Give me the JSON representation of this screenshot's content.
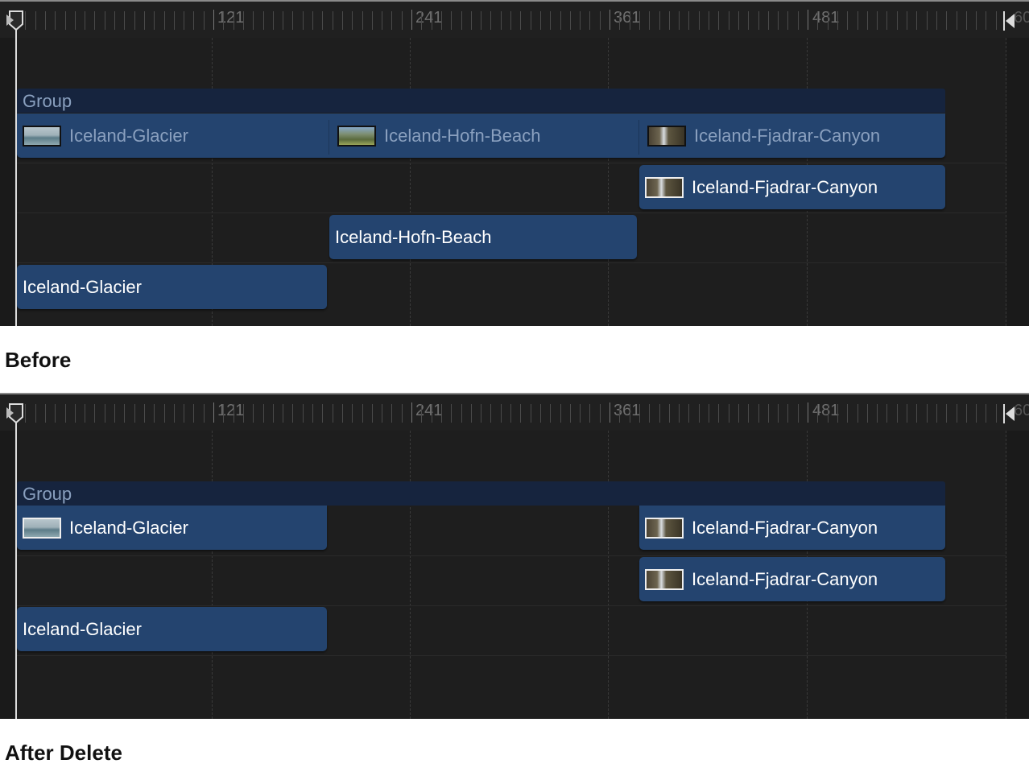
{
  "ruler": {
    "labels": [
      "121",
      "241",
      "361",
      "481"
    ],
    "end_label": "60"
  },
  "before": {
    "caption": "Before",
    "group_label": "Group",
    "group_row": [
      "Iceland-Glacier",
      "Iceland-Hofn-Beach",
      "Iceland-Fjadrar-Canyon"
    ],
    "tracks": [
      "Iceland-Fjadrar-Canyon",
      "Iceland-Hofn-Beach",
      "Iceland-Glacier"
    ]
  },
  "after": {
    "caption": "After Delete",
    "group_label": "Group",
    "group_row": [
      "Iceland-Glacier",
      "Iceland-Fjadrar-Canyon"
    ],
    "tracks": [
      "Iceland-Fjadrar-Canyon",
      "Iceland-Glacier"
    ]
  },
  "colors": {
    "clip": "#24446f",
    "group": "#16243e",
    "background": "#1e1e1e"
  }
}
